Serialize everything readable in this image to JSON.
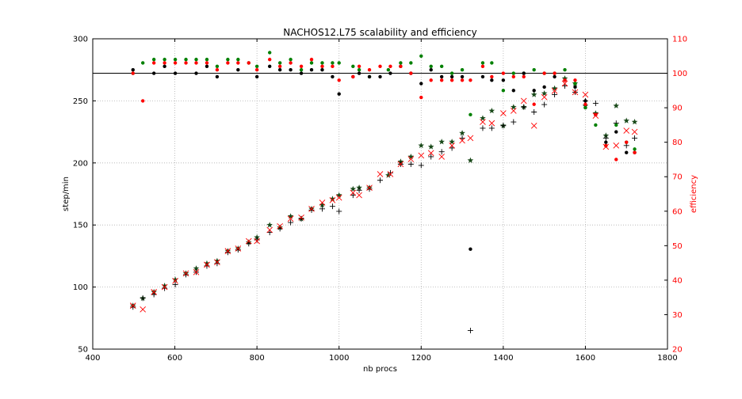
{
  "chart_data": {
    "type": "scatter",
    "title": "NACHOS12.L75 scalability and efficiency",
    "xlabel": "nb procs",
    "ylabel": "step/min",
    "ylabel_right": "efficiency",
    "xlim": [
      400,
      1800
    ],
    "ylim": [
      50,
      300
    ],
    "ylim_right": [
      20,
      110
    ],
    "grid": true,
    "xticks": [
      400,
      600,
      800,
      1000,
      1200,
      1400,
      1600,
      1800
    ],
    "yticks": [
      50,
      100,
      150,
      200,
      250,
      300
    ],
    "yticks_right": [
      20,
      30,
      40,
      50,
      60,
      70,
      80,
      90,
      100,
      110
    ],
    "reference_line_efficiency": 100,
    "colors": {
      "axis_right": "#ff0000",
      "black": "#000000",
      "green": "#008000",
      "red": "#ff0000",
      "star": "#1a4a1a",
      "grid": "#b0b0b0"
    },
    "series": [
      {
        "marker": "star",
        "color": "#1a4a1a",
        "axis": "left",
        "x": [
          498,
          522,
          549,
          575,
          601,
          627,
          652,
          678,
          703,
          729,
          754,
          780,
          800,
          831,
          856,
          882,
          908,
          933,
          959,
          984,
          1000,
          1034,
          1049,
          1074,
          1120,
          1150,
          1175,
          1200,
          1224,
          1250,
          1275,
          1300,
          1320,
          1350,
          1372,
          1400,
          1425,
          1450,
          1475,
          1500,
          1525,
          1550,
          1575,
          1600,
          1625,
          1650,
          1675,
          1700,
          1720
        ],
        "y": [
          85,
          91,
          96,
          101,
          106,
          111,
          115,
          119,
          121,
          129,
          131,
          136,
          140,
          150,
          148,
          157,
          155,
          163,
          166,
          171,
          174,
          179,
          180,
          180,
          190,
          201,
          205,
          214,
          213,
          217,
          217,
          224,
          202,
          236,
          242,
          230,
          245,
          245,
          255,
          256,
          260,
          268,
          264,
          246,
          240,
          222,
          246,
          234,
          233
        ]
      },
      {
        "marker": "plus",
        "color": "#000000",
        "axis": "left",
        "x": [
          498,
          522,
          549,
          575,
          601,
          627,
          652,
          678,
          703,
          729,
          754,
          780,
          800,
          831,
          856,
          882,
          908,
          933,
          959,
          984,
          1000,
          1034,
          1049,
          1074,
          1100,
          1125,
          1150,
          1175,
          1200,
          1224,
          1250,
          1275,
          1300,
          1320,
          1350,
          1372,
          1400,
          1425,
          1450,
          1475,
          1500,
          1525,
          1550,
          1575,
          1600,
          1625,
          1650,
          1675,
          1700,
          1720
        ],
        "y": [
          84,
          91,
          94,
          99,
          102,
          110,
          112,
          117,
          119,
          128,
          130,
          135,
          138,
          144,
          147,
          152,
          155,
          162,
          163,
          165,
          161,
          174,
          178,
          179,
          186,
          192,
          199,
          199,
          198,
          205,
          209,
          212,
          220,
          65,
          228,
          228,
          230,
          233,
          245,
          241,
          247,
          255,
          262,
          257,
          250,
          248,
          220,
          232,
          214,
          220
        ]
      },
      {
        "marker": "cross",
        "color": "#ff0000",
        "axis": "left",
        "x": [
          498,
          522,
          549,
          575,
          601,
          627,
          652,
          678,
          703,
          729,
          754,
          780,
          800,
          831,
          856,
          882,
          908,
          933,
          959,
          984,
          1000,
          1034,
          1049,
          1074,
          1100,
          1125,
          1150,
          1175,
          1200,
          1224,
          1250,
          1275,
          1300,
          1320,
          1350,
          1372,
          1400,
          1425,
          1450,
          1475,
          1500,
          1525,
          1550,
          1575,
          1600,
          1625,
          1650,
          1675,
          1700,
          1720
        ],
        "y": [
          85,
          82,
          96,
          100,
          105,
          111,
          112,
          118,
          120,
          129,
          131,
          137,
          137,
          146,
          149,
          155,
          156,
          163,
          168,
          170,
          172,
          176,
          174,
          180,
          191,
          191,
          199,
          203,
          206,
          208,
          205,
          214,
          218,
          220,
          233,
          232,
          240,
          242,
          250,
          230,
          253,
          258,
          264,
          257,
          255,
          238,
          213,
          214,
          226,
          225
        ]
      },
      {
        "marker": "dot",
        "color": "#008000",
        "axis": "right",
        "x": [
          498,
          522,
          549,
          575,
          601,
          627,
          652,
          678,
          703,
          729,
          754,
          780,
          800,
          831,
          856,
          882,
          908,
          933,
          959,
          984,
          1000,
          1034,
          1049,
          1074,
          1120,
          1150,
          1175,
          1200,
          1224,
          1250,
          1275,
          1300,
          1320,
          1350,
          1372,
          1400,
          1425,
          1450,
          1475,
          1500,
          1525,
          1550,
          1575,
          1600,
          1625,
          1650,
          1675,
          1700,
          1720
        ],
        "y": [
          100,
          103,
          104,
          104,
          104,
          104,
          104,
          104,
          102,
          104,
          104,
          103,
          102,
          106,
          103,
          104,
          101,
          103,
          103,
          103,
          103,
          102,
          101,
          99,
          101,
          103,
          103,
          105,
          102,
          102,
          100,
          101,
          88,
          103,
          103,
          95,
          100,
          100,
          101,
          100,
          100,
          101,
          97,
          90,
          85,
          79,
          85,
          80,
          78
        ]
      },
      {
        "marker": "dot",
        "color": "#000000",
        "axis": "right",
        "x": [
          498,
          549,
          575,
          601,
          652,
          678,
          703,
          754,
          800,
          831,
          856,
          882,
          908,
          933,
          959,
          984,
          1000,
          1034,
          1049,
          1074,
          1100,
          1125,
          1150,
          1175,
          1200,
          1224,
          1250,
          1275,
          1300,
          1320,
          1350,
          1372,
          1400,
          1425,
          1450,
          1475,
          1500,
          1525,
          1550,
          1575,
          1600,
          1625,
          1650,
          1675,
          1700,
          1720
        ],
        "y": [
          101,
          100,
          102,
          100,
          100,
          102,
          99,
          101,
          99,
          102,
          101,
          101,
          100,
          101,
          101,
          99,
          94,
          99,
          100,
          99,
          99,
          100,
          102,
          100,
          97,
          101,
          99,
          99,
          99,
          49,
          99,
          98,
          98,
          95,
          100,
          95,
          96,
          99,
          98,
          96,
          92,
          88,
          80,
          83,
          77,
          77
        ]
      },
      {
        "marker": "dot",
        "color": "#ff0000",
        "axis": "right",
        "x": [
          498,
          522,
          549,
          575,
          601,
          627,
          652,
          678,
          703,
          729,
          754,
          780,
          800,
          831,
          856,
          882,
          908,
          933,
          959,
          984,
          1000,
          1034,
          1049,
          1074,
          1100,
          1125,
          1150,
          1175,
          1200,
          1224,
          1250,
          1275,
          1300,
          1320,
          1350,
          1372,
          1400,
          1425,
          1450,
          1475,
          1500,
          1525,
          1550,
          1575,
          1600,
          1625,
          1650,
          1675,
          1700,
          1720
        ],
        "y": [
          100,
          92,
          103,
          103,
          103,
          103,
          103,
          103,
          101,
          103,
          103,
          103,
          101,
          104,
          102,
          103,
          102,
          104,
          102,
          102,
          98,
          99,
          102,
          101,
          102,
          102,
          102,
          100,
          93,
          98,
          98,
          98,
          98,
          98,
          102,
          99,
          100,
          99,
          99,
          91,
          100,
          100,
          98,
          98,
          91,
          88,
          79,
          75,
          80,
          77
        ]
      }
    ]
  }
}
